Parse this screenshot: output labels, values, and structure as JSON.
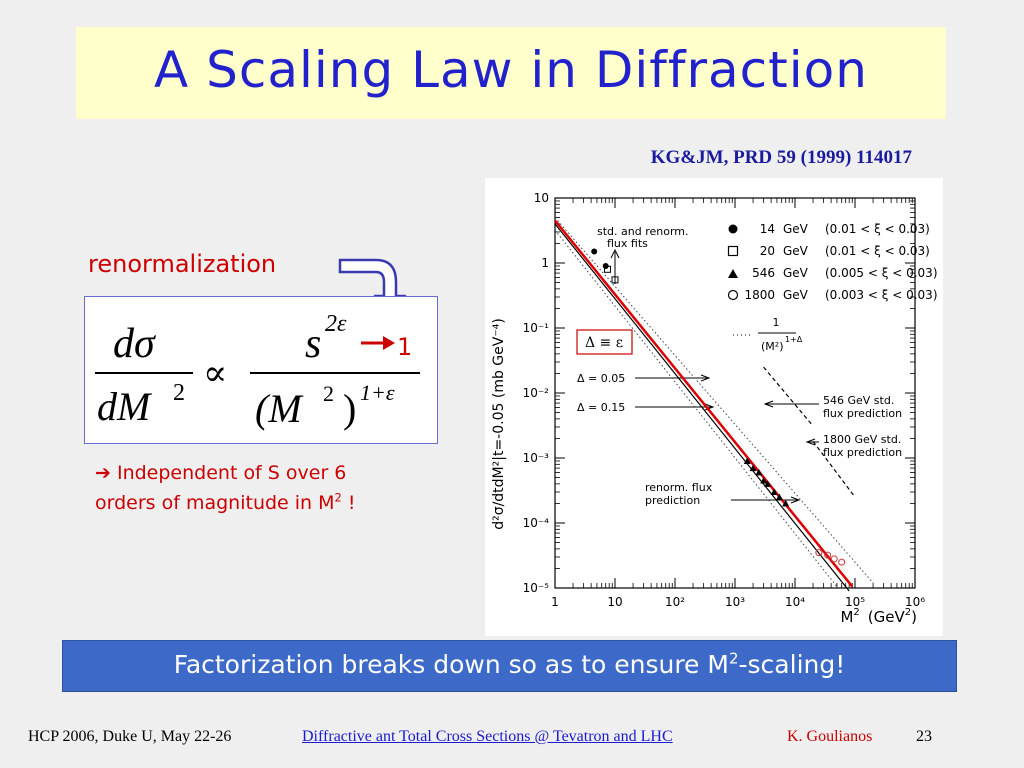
{
  "slide": {
    "title": "A Scaling Law in Diffraction",
    "citation": "KG&JM, PRD 59 (1999) 114017",
    "renormalization_label": "renormalization",
    "formula": {
      "lhs_numerator": "dσ",
      "lhs_denominator_base": "dM",
      "lhs_denominator_exp": "2",
      "proportional": "∝",
      "rhs_numerator_base": "s",
      "rhs_numerator_exp": "2ε",
      "arrow_result": "1",
      "rhs_denominator_open": "(M",
      "rhs_denominator_inner_exp": "2",
      "rhs_denominator_close": ")",
      "rhs_denominator_exp": "1+ε"
    },
    "note": {
      "arrow": "➔",
      "line1": "Independent of S over 6",
      "line2_prefix": "orders of magnitude in M",
      "line2_sup": "2",
      "line2_suffix": "!"
    },
    "banner": {
      "prefix": "Factorization breaks down so as to ensure M",
      "sup": "2",
      "suffix": "-scaling!"
    },
    "footer": {
      "left": "HCP 2006, Duke U, May 22-26",
      "link": "Diffractive ant Total Cross Sections @ Tevatron and LHC",
      "author": "K. Goulianos",
      "page": "23"
    },
    "colors": {
      "title": "#2222cc",
      "accent_red": "#cc0000",
      "banner": "#3d6ac8",
      "title_box": "#ffffcc"
    }
  },
  "chart_data": {
    "type": "scatter",
    "xlabel_base": "M",
    "xlabel_sup": "2",
    "xlabel_units": "(GeV",
    "xlabel_units_sup": "2",
    "xlabel_close": ")",
    "ylabel": "d²σ/dtdM²|t=-0.05 (mb GeV⁻⁴)",
    "x_scale": "log",
    "y_scale": "log",
    "xlim": [
      1,
      1000000
    ],
    "ylim": [
      1e-05,
      10
    ],
    "x_ticks": [
      "1",
      "10",
      "10²",
      "10³",
      "10⁴",
      "10⁵",
      "10⁶"
    ],
    "y_ticks": [
      "10",
      "1",
      "10⁻¹",
      "10⁻²",
      "10⁻³",
      "10⁻⁴",
      "10⁻⁵"
    ],
    "legend": [
      {
        "marker": "filled-circle",
        "energy": "14",
        "unit": "GeV",
        "range": "(0.01  < ξ < 0.03)"
      },
      {
        "marker": "open-square",
        "energy": "20",
        "unit": "GeV",
        "range": "(0.01  < ξ < 0.03)"
      },
      {
        "marker": "filled-triangle",
        "energy": "546",
        "unit": "GeV",
        "range": "(0.005 < ξ < 0.03)"
      },
      {
        "marker": "open-circle",
        "energy": "1800",
        "unit": "GeV",
        "range": "(0.003 < ξ < 0.03)"
      }
    ],
    "series": [
      {
        "name": "14 GeV",
        "marker": "filled-circle",
        "points": [
          [
            4.5,
            1.5
          ],
          [
            7,
            0.9
          ]
        ]
      },
      {
        "name": "20 GeV",
        "marker": "open-square",
        "points": [
          [
            7.5,
            0.8
          ],
          [
            10,
            0.55
          ]
        ]
      },
      {
        "name": "546 GeV",
        "marker": "filled-triangle",
        "points": [
          [
            1600,
            0.0009
          ],
          [
            2000,
            0.0007
          ],
          [
            2500,
            0.0006
          ],
          [
            3000,
            0.00045
          ],
          [
            3500,
            0.0004
          ],
          [
            4500,
            0.0003
          ],
          [
            5500,
            0.00025
          ],
          [
            7000,
            0.0002
          ]
        ]
      },
      {
        "name": "1800 GeV",
        "marker": "open-circle",
        "points": [
          [
            25000,
            3.5e-05
          ],
          [
            35000,
            3.2e-05
          ],
          [
            45000,
            2.8e-05
          ],
          [
            60000,
            2.5e-05
          ]
        ]
      }
    ],
    "lines": [
      {
        "style": "solid-red",
        "points": [
          [
            1,
            4.5
          ],
          [
            90000,
            1.05e-05
          ]
        ]
      },
      {
        "style": "solid-black",
        "points": [
          [
            1,
            4.0
          ],
          [
            80000,
            9e-06
          ]
        ]
      },
      {
        "style": "dotted",
        "points": [
          [
            1,
            3.2
          ],
          [
            50000,
            1.05e-05
          ]
        ]
      },
      {
        "style": "dotted",
        "points": [
          [
            1,
            5.0
          ],
          [
            200000,
            1.2e-05
          ]
        ]
      },
      {
        "style": "dashed",
        "points": [
          [
            3000,
            0.025
          ],
          [
            20000,
            0.0031
          ]
        ]
      },
      {
        "style": "dashed",
        "points": [
          [
            20000,
            0.0018
          ],
          [
            100000,
            0.00025
          ]
        ]
      }
    ],
    "annotations": {
      "fits_line1": "std. and renorm.",
      "fits_line2": "flux fits",
      "delta_eq": "Δ ≡ ε",
      "delta1": "Δ = 0.05",
      "delta2": "Δ = 0.15",
      "scaling_num": "1",
      "scaling_den": "(M²)",
      "scaling_sup": "1+Δ",
      "std546_line1": "546 GeV  std.",
      "std546_line2": "flux prediction",
      "std1800_line1": "1800 GeV  std.",
      "std1800_line2": "flux prediction",
      "renorm_line1": "renorm. flux",
      "renorm_line2": "prediction"
    }
  }
}
